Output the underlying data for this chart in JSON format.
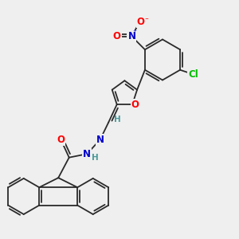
{
  "background_color": "#efefef",
  "bond_color": "#2a2a2a",
  "bond_width": 1.3,
  "atom_colors": {
    "O": "#ff0000",
    "N": "#0000cc",
    "Cl": "#00bb00",
    "H": "#4a9a9a"
  },
  "font_size_atom": 8.5,
  "font_size_H": 7.5,
  "font_size_charge": 6
}
